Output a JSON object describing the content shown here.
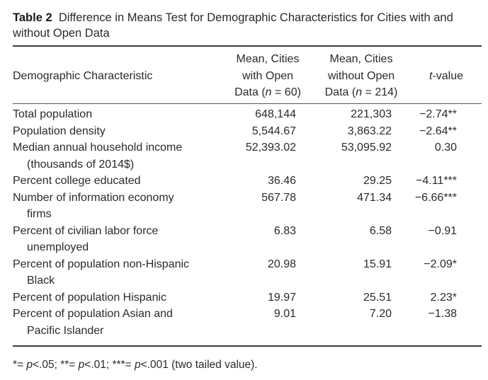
{
  "caption": {
    "label": "Table 2",
    "title": "Difference in Means Test for Demographic Characteristics for Cities with and without Open Data"
  },
  "header": {
    "col0": "Demographic Characteristic",
    "col1_line1": "Mean, Cities",
    "col1_line2": "with Open",
    "col1_line3_pre": "Data (",
    "col1_n": "n",
    "col1_line3_post": " = 60)",
    "col2_line1": "Mean, Cities",
    "col2_line2": "without Open",
    "col2_line3_pre": "Data (",
    "col2_n": "n",
    "col2_line3_post": " = 214)",
    "col3_t": "t",
    "col3_rest": "-value"
  },
  "rows": [
    {
      "name": "Total population",
      "cont": "",
      "with_open": "648,144",
      "without_open": "221,303",
      "t_value": "−2.74**"
    },
    {
      "name": "Population density",
      "cont": "",
      "with_open": "5,544.67",
      "without_open": "3,863.22",
      "t_value": "−2.64**"
    },
    {
      "name": "Median annual household income",
      "cont": "(thousands of 2014$)",
      "with_open": "52,393.02",
      "without_open": "53,095.92",
      "t_value": "0.30"
    },
    {
      "name": "Percent college educated",
      "cont": "",
      "with_open": "36.46",
      "without_open": "29.25",
      "t_value": "−4.11***"
    },
    {
      "name": "Number of information economy",
      "cont": "firms",
      "with_open": "567.78",
      "without_open": "471.34",
      "t_value": "−6.66***"
    },
    {
      "name": "Percent of civilian labor force",
      "cont": "unemployed",
      "with_open": "6.83",
      "without_open": "6.58",
      "t_value": "−0.91"
    },
    {
      "name": "Percent of population non-Hispanic",
      "cont": "Black",
      "with_open": "20.98",
      "without_open": "15.91",
      "t_value": "−2.09*"
    },
    {
      "name": "Percent of population Hispanic",
      "cont": "",
      "with_open": "19.97",
      "without_open": "25.51",
      "t_value": "2.23*"
    },
    {
      "name": "Percent of population Asian and",
      "cont": "Pacific Islander",
      "with_open": "9.01",
      "without_open": "7.20",
      "t_value": "−1.38"
    }
  ],
  "note": {
    "s1_stars": "*= ",
    "s1_p": "p",
    "s1_val": "<.05; ",
    "s2_stars": "**= ",
    "s2_p": "p",
    "s2_val": "<.01; ",
    "s3_stars": "***= ",
    "s3_p": "p",
    "s3_val": "<.001 (two tailed value)."
  }
}
